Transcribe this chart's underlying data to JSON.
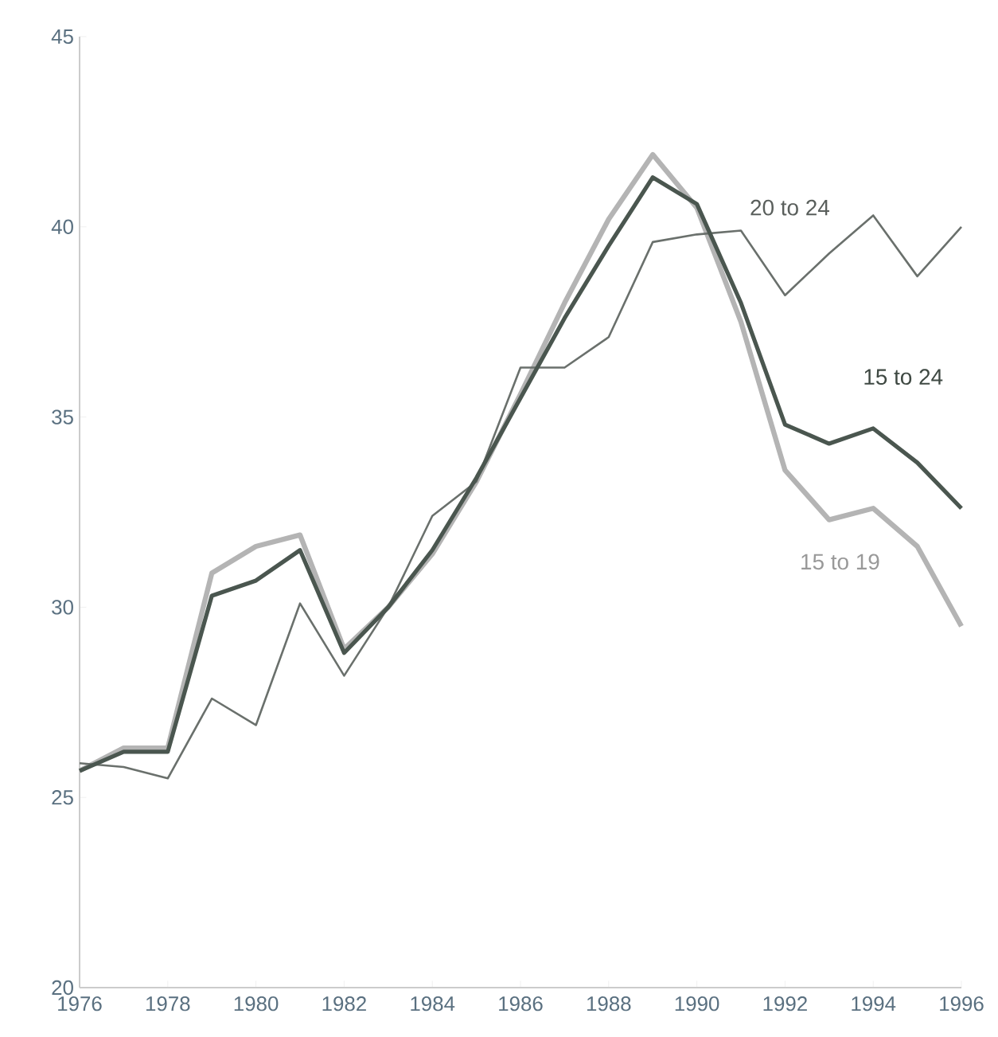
{
  "chart_data": {
    "type": "line",
    "x": [
      1976,
      1977,
      1978,
      1979,
      1980,
      1981,
      1982,
      1983,
      1984,
      1985,
      1986,
      1987,
      1988,
      1989,
      1990,
      1991,
      1992,
      1993,
      1994,
      1995,
      1996
    ],
    "xlim": [
      1976,
      1996
    ],
    "xticks": [
      1976,
      1978,
      1980,
      1982,
      1984,
      1986,
      1988,
      1990,
      1992,
      1994,
      1996
    ],
    "ylim": [
      20,
      45
    ],
    "yticks": [
      20,
      25,
      30,
      35,
      40,
      45
    ],
    "grid": false,
    "marker": "none",
    "line_style": "solid",
    "series": [
      {
        "name": "15 to 19",
        "color": "#b4b4b4",
        "values": [
          25.7,
          26.3,
          26.3,
          30.9,
          31.6,
          31.9,
          28.9,
          30.0,
          31.4,
          33.3,
          35.6,
          38.0,
          40.2,
          41.9,
          40.5,
          37.5,
          33.6,
          32.3,
          32.6,
          31.6,
          29.5
        ]
      },
      {
        "name": "20 to 24",
        "color": "#6a706c",
        "values": [
          25.9,
          25.8,
          25.5,
          27.6,
          26.9,
          30.1,
          28.2,
          30.0,
          32.4,
          33.3,
          36.3,
          36.3,
          37.1,
          39.6,
          39.8,
          39.9,
          38.2,
          39.3,
          40.3,
          38.7,
          40.0
        ]
      },
      {
        "name": "15 to 24",
        "color": "#4a564f",
        "values": [
          25.7,
          26.2,
          26.2,
          30.3,
          30.7,
          31.5,
          28.8,
          30.0,
          31.5,
          33.4,
          35.5,
          37.6,
          39.5,
          41.3,
          40.6,
          38.0,
          34.8,
          34.3,
          34.7,
          33.8,
          32.6
        ]
      }
    ]
  }
}
